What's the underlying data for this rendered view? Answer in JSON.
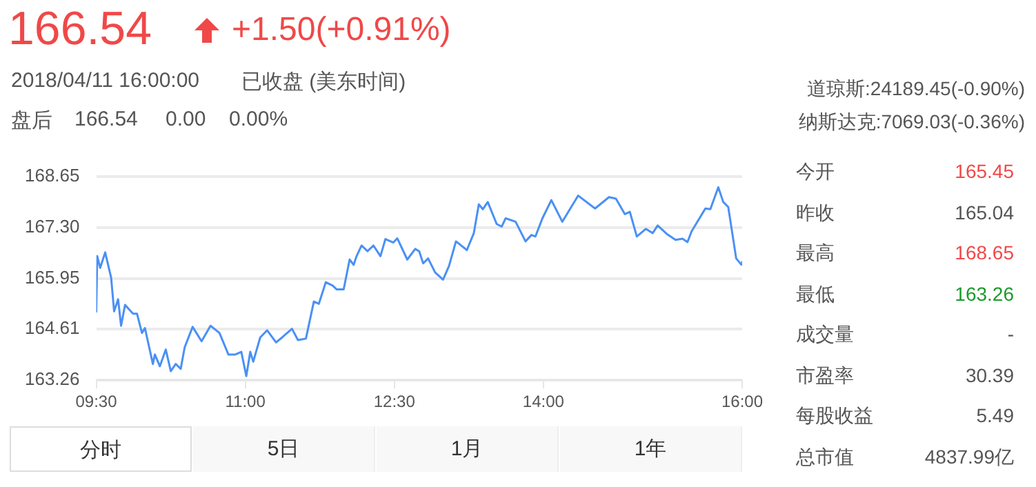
{
  "chart_data": {
    "type": "line",
    "title": "166.54",
    "subtitle": "+1.50(+0.91%)",
    "annotations": [
      "2018/04/11 16:00:00",
      "已收盘 (美东时间)",
      "盘后",
      "166.54",
      "0.00",
      "0.00%",
      "道琼斯:24189.45(-0.90%)",
      "纳斯达克:7069.03(-0.36%)",
      "今开",
      "165.45",
      "昨收",
      "165.04",
      "最高",
      "168.65",
      "最低",
      "163.26",
      "成交量",
      "-",
      "市盈率",
      "30.39",
      "每股收益",
      "5.49",
      "总市值",
      "4837.99亿",
      "分时",
      "5日",
      "1月",
      "1年"
    ],
    "x": [
      9.5,
      9.51,
      9.54,
      9.59,
      9.65,
      9.68,
      9.72,
      9.75,
      9.79,
      9.87,
      9.91,
      9.96,
      9.99,
      10.07,
      10.09,
      10.14,
      10.2,
      10.25,
      10.3,
      10.35,
      10.39,
      10.47,
      10.56,
      10.65,
      10.74,
      10.83,
      10.9,
      10.96,
      11.01,
      11.05,
      11.08,
      11.15,
      11.22,
      11.31,
      11.37,
      11.47,
      11.53,
      11.61,
      11.69,
      11.74,
      11.81,
      11.88,
      11.92,
      11.99,
      12.05,
      12.09,
      12.12,
      12.17,
      12.23,
      12.29,
      12.36,
      12.41,
      12.49,
      12.53,
      12.63,
      12.71,
      12.75,
      12.79,
      12.84,
      12.91,
      12.99,
      13.05,
      13.12,
      13.23,
      13.3,
      13.35,
      13.39,
      13.44,
      13.53,
      13.58,
      13.62,
      13.72,
      13.82,
      13.88,
      13.92,
      13.99,
      14.08,
      14.19,
      14.35,
      14.52,
      14.66,
      14.73,
      14.82,
      14.87,
      14.94,
      15.03,
      15.1,
      15.15,
      15.24,
      15.33,
      15.4,
      15.45,
      15.49,
      15.63,
      15.68,
      15.76,
      15.81,
      15.86,
      15.94,
      15.99,
      16.0
    ],
    "series": [
      {
        "color": "#4a90f5",
        "values": [
          165.05,
          166.54,
          166.23,
          166.64,
          165.97,
          165.08,
          165.4,
          164.7,
          165.25,
          165.02,
          165.02,
          164.51,
          164.64,
          163.69,
          163.94,
          163.63,
          164.07,
          163.5,
          163.69,
          163.56,
          164.13,
          164.67,
          164.29,
          164.7,
          164.51,
          163.94,
          163.94,
          164.01,
          163.37,
          164.01,
          163.75,
          164.39,
          164.58,
          164.26,
          164.39,
          164.62,
          164.32,
          164.36,
          165.34,
          165.28,
          165.85,
          165.76,
          165.66,
          165.66,
          166.45,
          166.31,
          166.54,
          166.82,
          166.67,
          166.82,
          166.54,
          166.99,
          166.9,
          167.01,
          166.45,
          166.73,
          166.67,
          166.35,
          166.48,
          166.11,
          165.92,
          166.28,
          166.93,
          166.7,
          167.15,
          167.91,
          167.78,
          167.97,
          167.39,
          167.32,
          167.54,
          167.45,
          166.93,
          167.1,
          167.06,
          167.54,
          168.02,
          167.45,
          168.14,
          167.8,
          168.1,
          168.06,
          167.65,
          167.71,
          167.06,
          167.26,
          167.15,
          167.35,
          167.13,
          166.97,
          167.0,
          166.91,
          167.19,
          167.8,
          167.78,
          168.36,
          167.97,
          167.84,
          166.48,
          166.32,
          166.41
        ]
      }
    ],
    "xlim": [
      9.5,
      16.0
    ],
    "xticks": [
      {
        "value": 9.5,
        "label": "09:30"
      },
      {
        "value": 11,
        "label": "11:00"
      },
      {
        "value": 12.5,
        "label": "12:30"
      },
      {
        "value": 14,
        "label": "14:00"
      },
      {
        "value": 16,
        "label": "16:00"
      }
    ],
    "ylim": [
      163.26,
      168.65
    ],
    "yticks": [
      163.26,
      164.61,
      165.95,
      {
        "value": 167.3,
        "label": "167.30"
      },
      168.65
    ],
    "grid": "y",
    "marker": "none",
    "line_style": "solid",
    "legend": false
  }
}
